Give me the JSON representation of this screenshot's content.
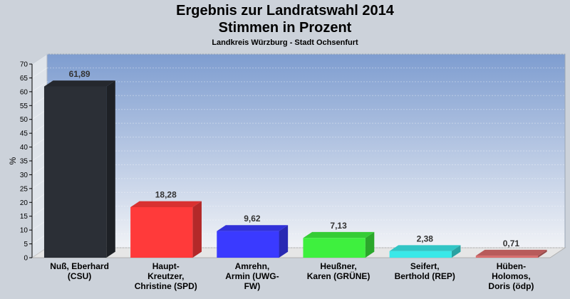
{
  "chart_data": {
    "type": "bar",
    "title": "Ergebnis zur Landratswahl 2014",
    "subtitle": "Stimmen in Prozent",
    "note": "Landkreis Würzburg - Stadt Ochsenfurt",
    "ylabel": "%",
    "ylim": [
      0,
      70
    ],
    "yticks": [
      0,
      5,
      10,
      15,
      20,
      25,
      30,
      35,
      40,
      45,
      50,
      55,
      60,
      65,
      70
    ],
    "grid": true,
    "categories": [
      [
        "Nuß, Eberhard",
        "(CSU)"
      ],
      [
        "Haupt-",
        "Kreutzer,",
        "Christine (SPD)"
      ],
      [
        "Amrehn,",
        "Armin (UWG-",
        "FW)"
      ],
      [
        "Heußner,",
        "Karen (GRÜNE)"
      ],
      [
        "Seifert,",
        "Berthold (REP)"
      ],
      [
        "Hüben-",
        "Holomos,",
        "Doris (ödp)"
      ]
    ],
    "values": [
      61.89,
      18.28,
      9.62,
      7.13,
      2.38,
      0.71
    ],
    "value_labels": [
      "61,89",
      "18,28",
      "9,62",
      "7,13",
      "2,38",
      "0,71"
    ],
    "colors": [
      "#2b2f36",
      "#ff3a3a",
      "#3a3aff",
      "#3ef03e",
      "#3ae8e8",
      "#d96b6b"
    ]
  }
}
